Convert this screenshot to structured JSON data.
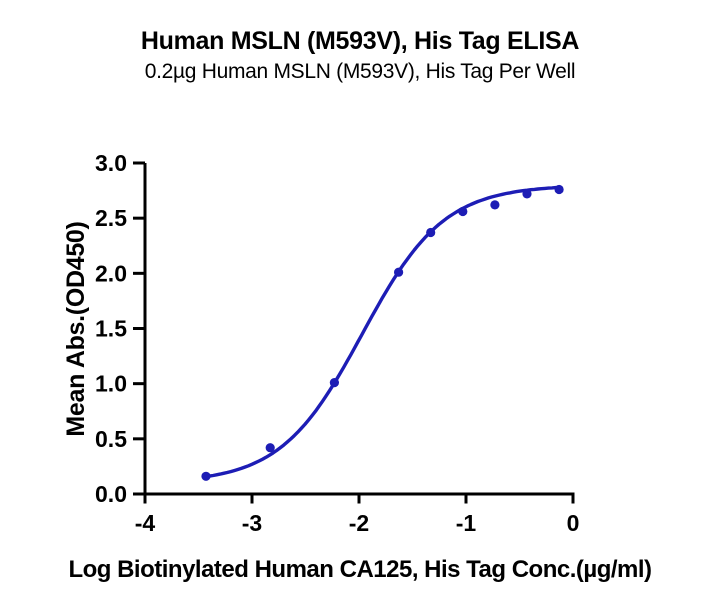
{
  "chart_data": {
    "type": "scatter",
    "title": "Human MSLN (M593V), His Tag ELISA",
    "subtitle": "0.2µg Human MSLN (M593V), His Tag Per Well",
    "xlabel": "Log Biotinylated Human CA125, His Tag Conc.(µg/ml)",
    "ylabel": "Mean Abs.(OD450)",
    "xlim": [
      -4,
      0
    ],
    "ylim": [
      0,
      3
    ],
    "x_ticks": [
      -4,
      -3,
      -2,
      -1,
      0
    ],
    "x_tick_labels": [
      "-4",
      "-3",
      "-2",
      "-1",
      "0"
    ],
    "y_ticks": [
      0,
      0.5,
      1,
      1.5,
      2,
      2.5,
      3
    ],
    "y_tick_labels": [
      "0.0",
      "0.5",
      "1.0",
      "1.5",
      "2.0",
      "2.5",
      "3.0"
    ],
    "grid": false,
    "legend": "none",
    "axis_color": "#000000",
    "series": [
      {
        "name": "Biotinylated Human CA125, His Tag",
        "color": "#1d1db5",
        "marker": "circle",
        "points": [
          {
            "x": -3.43,
            "y": 0.16
          },
          {
            "x": -2.83,
            "y": 0.42
          },
          {
            "x": -2.23,
            "y": 1.01
          },
          {
            "x": -1.63,
            "y": 2.01
          },
          {
            "x": -1.33,
            "y": 2.37
          },
          {
            "x": -1.03,
            "y": 2.56
          },
          {
            "x": -0.73,
            "y": 2.62
          },
          {
            "x": -0.43,
            "y": 2.72
          },
          {
            "x": -0.13,
            "y": 2.76
          }
        ],
        "fit_curve": {
          "model": "4PL",
          "bottom": 0.1,
          "top": 2.8,
          "hill_slope": 1.14,
          "log_ec50": -1.97,
          "x_start": -3.43,
          "x_end": -0.13
        }
      }
    ]
  }
}
